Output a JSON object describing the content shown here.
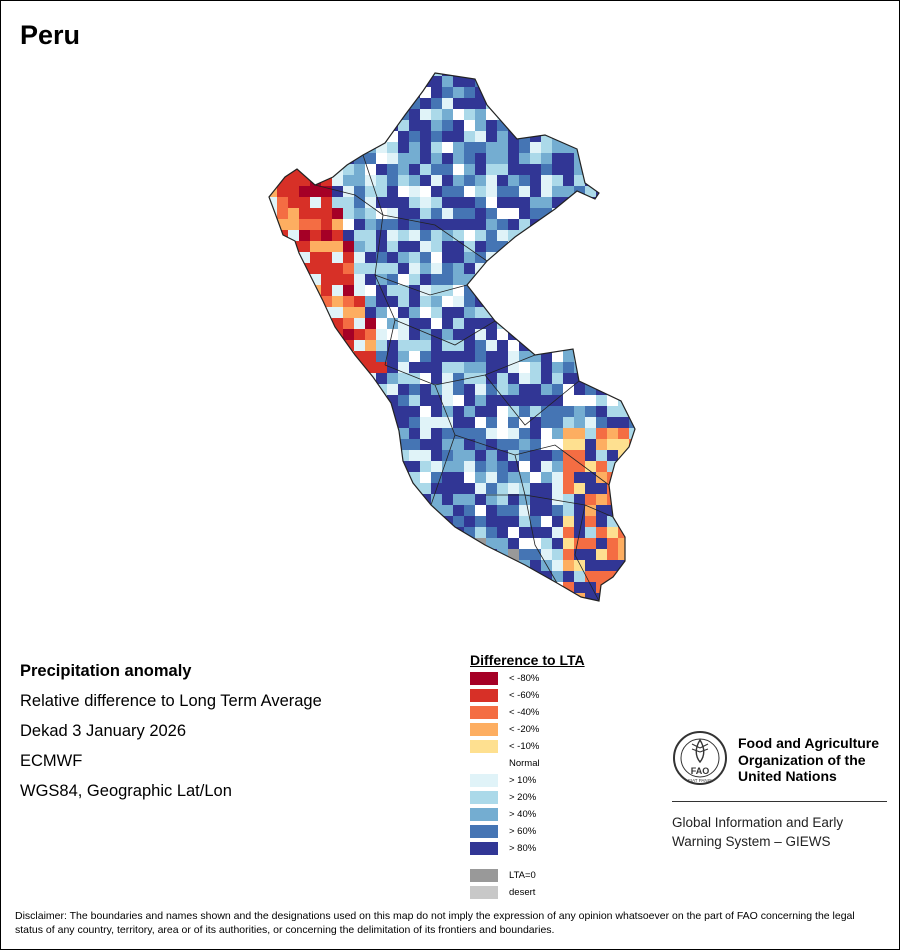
{
  "title": "Peru",
  "info": {
    "heading": "Precipitation anomaly",
    "subtitle": "Relative difference to Long Term Average",
    "period": "Dekad 3 January 2026",
    "source": "ECMWF",
    "projection": "WGS84, Geographic Lat/Lon"
  },
  "legend": {
    "heading": "Difference to LTA",
    "items": [
      {
        "label": "< -80%",
        "color": "#a50026"
      },
      {
        "label": "< -60%",
        "color": "#d73027"
      },
      {
        "label": "< -40%",
        "color": "#f46d43"
      },
      {
        "label": "< -20%",
        "color": "#fdae61"
      },
      {
        "label": "< -10%",
        "color": "#fee090"
      },
      {
        "label": "Normal",
        "color": "#ffffff"
      },
      {
        "label": "> 10%",
        "color": "#e0f3f8"
      },
      {
        "label": "> 20%",
        "color": "#abd9e9"
      },
      {
        "label": "> 40%",
        "color": "#74add1"
      },
      {
        "label": "> 60%",
        "color": "#4575b4"
      },
      {
        "label": "> 80%",
        "color": "#313695"
      },
      {
        "label": "LTA=0",
        "color": "#999999"
      },
      {
        "label": "desert",
        "color": "#c8c8c8"
      }
    ]
  },
  "fao": {
    "org_line1": "Food and Agriculture",
    "org_line2": "Organization of the",
    "org_line3": "United Nations",
    "logo_text": "FAO",
    "logo_motto": "FIAT PANIS",
    "giews_line1": "Global Information and Early",
    "giews_line2": "Warning System – GIEWS"
  },
  "disclaimer": "Disclaimer: The boundaries and names shown and the designations used on this map do not imply the expression of any opinion whatsoever on the part of FAO concerning the legal status of any country, territory, area or of its authorities, or concerning the delimitation of its frontiers and boundaries."
}
